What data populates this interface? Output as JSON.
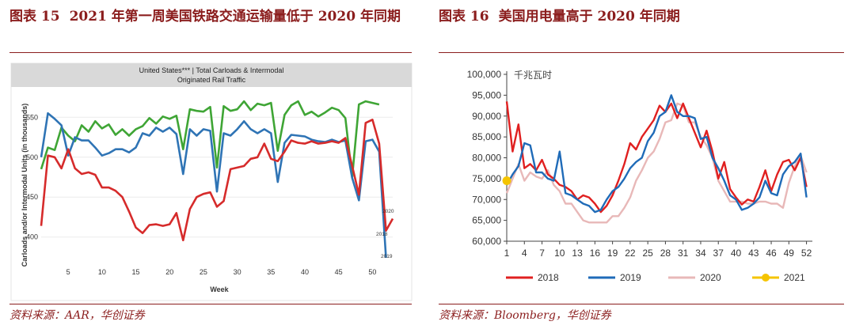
{
  "left_panel": {
    "figure_label": "图表 15",
    "figure_title": "2021 年第一周美国铁路交通运输量低于 2020 年同期",
    "source": "资料来源：AAR，华创证券"
  },
  "right_panel": {
    "figure_label": "图表 16",
    "figure_title": "美国用电量高于 2020 年同期",
    "source": "资料来源：Bloomberg，华创证券"
  },
  "chart_data": [
    {
      "type": "line",
      "title": "United States*** | Total Carloads & Intermodal",
      "subtitle": "Originated Rail Traffic",
      "xlabel": "Week",
      "ylabel": "Carloads and/or Intermodal Units (in thousands)",
      "xlim": [
        1,
        53
      ],
      "ylim": [
        370,
        580
      ],
      "x_ticks": [
        5,
        10,
        15,
        20,
        25,
        30,
        35,
        40,
        45,
        50
      ],
      "y_ticks": [
        400,
        450,
        500,
        550
      ],
      "colors": {
        "2018": "#3fa535",
        "2019": "#2f74b5",
        "2020": "#d62b2b"
      },
      "series": [
        {
          "name": "2018",
          "x": [
            1,
            2,
            3,
            4,
            5,
            6,
            7,
            8,
            9,
            10,
            11,
            12,
            13,
            14,
            15,
            16,
            17,
            18,
            19,
            20,
            21,
            22,
            23,
            24,
            25,
            26,
            27,
            28,
            29,
            30,
            31,
            32,
            33,
            34,
            35,
            36,
            37,
            38,
            39,
            40,
            41,
            42,
            43,
            44,
            45,
            46,
            47,
            48,
            49,
            50,
            51
          ],
          "values": [
            485,
            512,
            509,
            537,
            527,
            520,
            540,
            532,
            545,
            536,
            541,
            528,
            535,
            527,
            535,
            539,
            549,
            542,
            551,
            548,
            552,
            510,
            560,
            558,
            557,
            563,
            487,
            564,
            558,
            560,
            570,
            559,
            567,
            565,
            568,
            508,
            553,
            565,
            570,
            553,
            557,
            551,
            556,
            562,
            559,
            549,
            475,
            566,
            570,
            568,
            566
          ]
        },
        {
          "name": "2019",
          "x": [
            1,
            2,
            3,
            4,
            5,
            6,
            7,
            8,
            9,
            10,
            11,
            12,
            13,
            14,
            15,
            16,
            17,
            18,
            19,
            20,
            21,
            22,
            23,
            24,
            25,
            26,
            27,
            28,
            29,
            30,
            31,
            32,
            33,
            34,
            35,
            36,
            37,
            38,
            39,
            40,
            41,
            42,
            43,
            44,
            45,
            46,
            47,
            48,
            49,
            50,
            51,
            52
          ],
          "values": [
            500,
            555,
            548,
            540,
            502,
            525,
            521,
            521,
            512,
            502,
            505,
            510,
            510,
            506,
            512,
            530,
            527,
            537,
            532,
            537,
            529,
            479,
            535,
            527,
            535,
            533,
            457,
            530,
            527,
            535,
            545,
            535,
            530,
            535,
            530,
            469,
            518,
            528,
            527,
            526,
            522,
            520,
            519,
            522,
            519,
            521,
            474,
            446,
            520,
            522,
            507,
            374
          ]
        },
        {
          "name": "2020",
          "x": [
            1,
            2,
            3,
            4,
            5,
            6,
            7,
            8,
            9,
            10,
            11,
            12,
            13,
            14,
            15,
            16,
            17,
            18,
            19,
            20,
            21,
            22,
            23,
            24,
            25,
            26,
            27,
            28,
            29,
            30,
            31,
            32,
            33,
            34,
            35,
            36,
            37,
            38,
            39,
            40,
            41,
            42,
            43,
            44,
            45,
            46,
            47,
            48,
            49,
            50,
            51,
            52,
            53
          ],
          "values": [
            414,
            502,
            500,
            486,
            510,
            486,
            479,
            481,
            478,
            462,
            462,
            458,
            450,
            432,
            412,
            405,
            415,
            416,
            414,
            416,
            430,
            396,
            435,
            450,
            454,
            456,
            438,
            445,
            485,
            487,
            489,
            498,
            500,
            517,
            498,
            495,
            507,
            521,
            518,
            517,
            520,
            517,
            518,
            520,
            518,
            524,
            489,
            453,
            543,
            547,
            517,
            408,
            423
          ]
        }
      ],
      "end_labels": [
        "2020",
        "2018",
        "2019"
      ]
    },
    {
      "type": "line",
      "title": "",
      "unit_label": "千兆瓦时",
      "xlabel": "",
      "ylabel": "",
      "xlim": [
        1,
        53
      ],
      "ylim": [
        60000,
        100000
      ],
      "x_ticks": [
        1,
        4,
        7,
        10,
        13,
        16,
        19,
        22,
        25,
        28,
        31,
        34,
        37,
        40,
        43,
        46,
        49,
        52
      ],
      "y_ticks": [
        "60,000",
        "65,000",
        "70,000",
        "75,000",
        "80,000",
        "85,000",
        "90,000",
        "95,000",
        "100,000"
      ],
      "colors": {
        "2018": "#e02020",
        "2019": "#1f6bb8",
        "2020": "#e8b8b8",
        "2021": "#f5c400"
      },
      "series": [
        {
          "name": "2018",
          "x": [
            1,
            2,
            3,
            4,
            5,
            6,
            7,
            8,
            9,
            10,
            11,
            12,
            13,
            14,
            15,
            16,
            17,
            18,
            19,
            20,
            21,
            22,
            23,
            24,
            25,
            26,
            27,
            28,
            29,
            30,
            31,
            32,
            33,
            34,
            35,
            36,
            37,
            38,
            39,
            40,
            41,
            42,
            43,
            44,
            45,
            46,
            47,
            48,
            49,
            50,
            51,
            52
          ],
          "values": [
            93500,
            81500,
            88000,
            77500,
            78500,
            77000,
            79500,
            76000,
            75000,
            73500,
            73000,
            72000,
            70000,
            71000,
            70500,
            69000,
            67000,
            68500,
            71000,
            74500,
            78500,
            83500,
            82000,
            85000,
            87000,
            89000,
            92500,
            91000,
            93000,
            89500,
            93000,
            89500,
            86000,
            82500,
            86500,
            81500,
            75000,
            79000,
            72500,
            70500,
            68800,
            70000,
            69500,
            73000,
            77000,
            72000,
            76000,
            79000,
            79500,
            77000,
            80000,
            73000
          ]
        },
        {
          "name": "2019",
          "x": [
            1,
            2,
            3,
            4,
            5,
            6,
            7,
            8,
            9,
            10,
            11,
            12,
            13,
            14,
            15,
            16,
            17,
            18,
            19,
            20,
            21,
            22,
            23,
            24,
            25,
            26,
            27,
            28,
            29,
            30,
            31,
            32,
            33,
            34,
            35,
            36,
            37,
            38,
            39,
            40,
            41,
            42,
            43,
            44,
            45,
            46,
            47,
            48,
            49,
            50,
            51,
            52
          ],
          "values": [
            73500,
            76000,
            78000,
            83500,
            83000,
            76500,
            76500,
            75000,
            74500,
            81500,
            71500,
            71000,
            70000,
            69000,
            68500,
            67000,
            67500,
            70000,
            72000,
            73000,
            75000,
            77500,
            79000,
            80000,
            84000,
            86000,
            90000,
            91000,
            95000,
            91000,
            90000,
            90000,
            89500,
            84500,
            85000,
            80000,
            77500,
            74500,
            71000,
            70000,
            67500,
            68000,
            69000,
            70500,
            74500,
            71500,
            71000,
            76000,
            78000,
            79000,
            81000,
            70500
          ]
        },
        {
          "name": "2020",
          "x": [
            1,
            2,
            3,
            4,
            5,
            6,
            7,
            8,
            9,
            10,
            11,
            12,
            13,
            14,
            15,
            16,
            17,
            18,
            19,
            20,
            21,
            22,
            23,
            24,
            25,
            26,
            27,
            28,
            29,
            30,
            31,
            32,
            33,
            34,
            35,
            36,
            37,
            38,
            39,
            40,
            41,
            42,
            43,
            44,
            45,
            46,
            47,
            48,
            49,
            50,
            51,
            52
          ],
          "values": [
            71500,
            75000,
            78500,
            74500,
            76500,
            75500,
            75000,
            77000,
            73500,
            72000,
            69000,
            69000,
            67000,
            65000,
            64500,
            64500,
            64500,
            64500,
            66000,
            66000,
            68000,
            70500,
            74500,
            77000,
            80000,
            81500,
            84500,
            88500,
            89000,
            93000,
            92500,
            88500,
            88500,
            85000,
            83000,
            80000,
            74500,
            72000,
            69500,
            69500,
            69500,
            69000,
            69000,
            69500,
            69500,
            69000,
            69000,
            68000,
            74000,
            78000,
            80500,
            76500
          ]
        },
        {
          "name": "2021",
          "x": [
            1
          ],
          "values": [
            74500
          ]
        }
      ]
    }
  ]
}
